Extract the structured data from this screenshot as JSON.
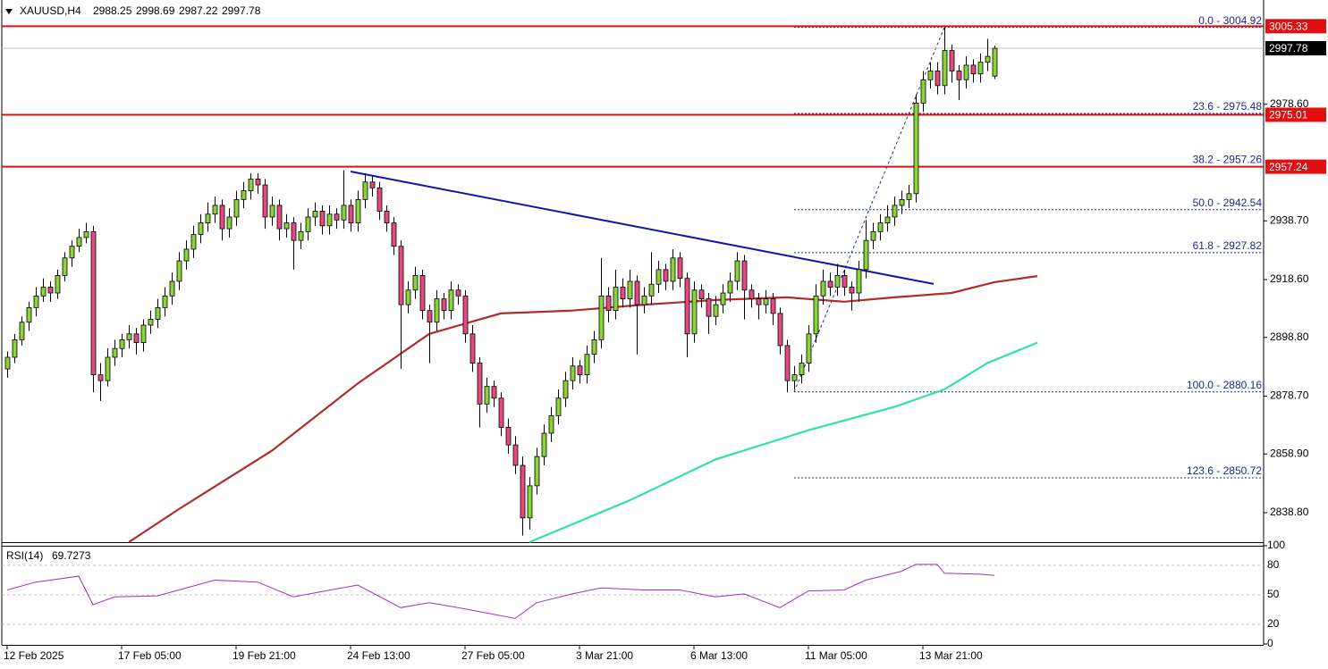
{
  "chart_data": {
    "type": "candlestick",
    "symbol": "XAUUSD,H4",
    "up_color": "#8ad337",
    "down_color": "#e6497f",
    "ylim": [
      2828.7,
      3014.3
    ],
    "yticks": [
      {
        "value": 2838.8,
        "label": "2838.80"
      },
      {
        "value": 2858.9,
        "label": "2858.90"
      },
      {
        "value": 2878.7,
        "label": "2878.70"
      },
      {
        "value": 2898.8,
        "label": "2898.80"
      },
      {
        "value": 2918.6,
        "label": "2918.60"
      },
      {
        "value": 2938.7,
        "label": "2938.70"
      },
      {
        "value": 2978.6,
        "label": "2978.60"
      }
    ],
    "xticks": [
      {
        "value": 0,
        "label": "12 Feb 2025"
      },
      {
        "value": 16,
        "label": "17 Feb 05:00"
      },
      {
        "value": 32,
        "label": "19 Feb 21:00"
      },
      {
        "value": 48,
        "label": "24 Feb 13:00"
      },
      {
        "value": 64,
        "label": "27 Feb 05:00"
      },
      {
        "value": 80,
        "label": "3 Mar 21:00"
      },
      {
        "value": 96,
        "label": "6 Mar 13:00"
      },
      {
        "value": 112,
        "label": "11 Mar 05:00"
      },
      {
        "value": 128,
        "label": "13 Mar 21:00"
      }
    ],
    "candles": [
      [
        2888,
        2894,
        2885,
        2892
      ],
      [
        2892,
        2900,
        2890,
        2898
      ],
      [
        2898,
        2906,
        2896,
        2904
      ],
      [
        2904,
        2911,
        2901,
        2909
      ],
      [
        2909,
        2916,
        2906,
        2913
      ],
      [
        2913,
        2919,
        2911,
        2916
      ],
      [
        2916,
        2918,
        2911,
        2914
      ],
      [
        2914,
        2922,
        2912,
        2920
      ],
      [
        2920,
        2928,
        2918,
        2926
      ],
      [
        2926,
        2932,
        2923,
        2930
      ],
      [
        2930,
        2936,
        2928,
        2933
      ],
      [
        2933,
        2938,
        2931,
        2935
      ],
      [
        2935,
        2937,
        2880,
        2886
      ],
      [
        2886,
        2890,
        2877,
        2884
      ],
      [
        2884,
        2895,
        2882,
        2892
      ],
      [
        2892,
        2898,
        2889,
        2895
      ],
      [
        2895,
        2900,
        2892,
        2898
      ],
      [
        2898,
        2903,
        2895,
        2900
      ],
      [
        2900,
        2902,
        2893,
        2897
      ],
      [
        2897,
        2905,
        2894,
        2903
      ],
      [
        2903,
        2908,
        2900,
        2905
      ],
      [
        2905,
        2912,
        2902,
        2909
      ],
      [
        2909,
        2916,
        2906,
        2913
      ],
      [
        2913,
        2921,
        2910,
        2918
      ],
      [
        2918,
        2928,
        2915,
        2925
      ],
      [
        2925,
        2932,
        2922,
        2929
      ],
      [
        2929,
        2937,
        2926,
        2934
      ],
      [
        2934,
        2941,
        2931,
        2938
      ],
      [
        2938,
        2945,
        2935,
        2941
      ],
      [
        2941,
        2947,
        2938,
        2944
      ],
      [
        2944,
        2946,
        2932,
        2936
      ],
      [
        2936,
        2943,
        2933,
        2940
      ],
      [
        2940,
        2949,
        2937,
        2946
      ],
      [
        2946,
        2952,
        2943,
        2949
      ],
      [
        2949,
        2955,
        2946,
        2953
      ],
      [
        2953,
        2955,
        2948,
        2951
      ],
      [
        2951,
        2953,
        2936,
        2940
      ],
      [
        2940,
        2947,
        2937,
        2944
      ],
      [
        2944,
        2946,
        2932,
        2936
      ],
      [
        2936,
        2941,
        2933,
        2938
      ],
      [
        2938,
        2940,
        2922,
        2932
      ],
      [
        2932,
        2938,
        2929,
        2935
      ],
      [
        2935,
        2943,
        2932,
        2940
      ],
      [
        2940,
        2945,
        2937,
        2942
      ],
      [
        2942,
        2944,
        2934,
        2937
      ],
      [
        2937,
        2944,
        2934,
        2941
      ],
      [
        2941,
        2943,
        2936,
        2939
      ],
      [
        2939,
        2956,
        2936,
        2944
      ],
      [
        2944,
        2946,
        2935,
        2938
      ],
      [
        2938,
        2949,
        2935,
        2946
      ],
      [
        2946,
        2955,
        2943,
        2952
      ],
      [
        2952,
        2954,
        2947,
        2950
      ],
      [
        2950,
        2952,
        2939,
        2942
      ],
      [
        2942,
        2944,
        2935,
        2938
      ],
      [
        2938,
        2940,
        2927,
        2930
      ],
      [
        2930,
        2932,
        2888,
        2910
      ],
      [
        2910,
        2918,
        2907,
        2915
      ],
      [
        2915,
        2923,
        2912,
        2920
      ],
      [
        2920,
        2922,
        2905,
        2908
      ],
      [
        2908,
        2910,
        2890,
        2904
      ],
      [
        2904,
        2915,
        2901,
        2912
      ],
      [
        2912,
        2914,
        2905,
        2908
      ],
      [
        2908,
        2918,
        2905,
        2915
      ],
      [
        2915,
        2917,
        2910,
        2913
      ],
      [
        2913,
        2915,
        2897,
        2900
      ],
      [
        2900,
        2903,
        2887,
        2890
      ],
      [
        2890,
        2892,
        2868,
        2876
      ],
      [
        2876,
        2885,
        2873,
        2882
      ],
      [
        2882,
        2884,
        2875,
        2878
      ],
      [
        2878,
        2880,
        2865,
        2868
      ],
      [
        2868,
        2871,
        2859,
        2862
      ],
      [
        2862,
        2865,
        2852,
        2855
      ],
      [
        2855,
        2858,
        2831,
        2837
      ],
      [
        2837,
        2851,
        2833,
        2848
      ],
      [
        2848,
        2861,
        2845,
        2858
      ],
      [
        2858,
        2869,
        2855,
        2866
      ],
      [
        2866,
        2875,
        2863,
        2872
      ],
      [
        2872,
        2881,
        2869,
        2878
      ],
      [
        2878,
        2887,
        2875,
        2884
      ],
      [
        2884,
        2892,
        2881,
        2889
      ],
      [
        2889,
        2891,
        2883,
        2886
      ],
      [
        2886,
        2896,
        2883,
        2893
      ],
      [
        2893,
        2901,
        2890,
        2898
      ],
      [
        2898,
        2926,
        2895,
        2913
      ],
      [
        2913,
        2916,
        2904,
        2908
      ],
      [
        2908,
        2922,
        2905,
        2916
      ],
      [
        2916,
        2919,
        2909,
        2912
      ],
      [
        2912,
        2922,
        2909,
        2918
      ],
      [
        2918,
        2920,
        2893,
        2910
      ],
      [
        2910,
        2916,
        2907,
        2913
      ],
      [
        2913,
        2928,
        2910,
        2917
      ],
      [
        2917,
        2925,
        2914,
        2922
      ],
      [
        2922,
        2924,
        2915,
        2918
      ],
      [
        2918,
        2929,
        2915,
        2926
      ],
      [
        2926,
        2928,
        2916,
        2919
      ],
      [
        2919,
        2921,
        2892,
        2900
      ],
      [
        2900,
        2918,
        2897,
        2915
      ],
      [
        2915,
        2917,
        2909,
        2912
      ],
      [
        2912,
        2914,
        2900,
        2906
      ],
      [
        2906,
        2913,
        2903,
        2910
      ],
      [
        2910,
        2917,
        2907,
        2914
      ],
      [
        2914,
        2921,
        2911,
        2918
      ],
      [
        2918,
        2928,
        2915,
        2925
      ],
      [
        2925,
        2927,
        2905,
        2915
      ],
      [
        2915,
        2917,
        2909,
        2912
      ],
      [
        2912,
        2914,
        2905,
        2910
      ],
      [
        2910,
        2915,
        2907,
        2912
      ],
      [
        2912,
        2914,
        2903,
        2907
      ],
      [
        2907,
        2909,
        2893,
        2896
      ],
      [
        2896,
        2898,
        2880,
        2884
      ],
      [
        2884,
        2889,
        2881,
        2886
      ],
      [
        2886,
        2893,
        2883,
        2890
      ],
      [
        2890,
        2903,
        2887,
        2900
      ],
      [
        2900,
        2917,
        2897,
        2913
      ],
      [
        2913,
        2922,
        2910,
        2918
      ],
      [
        2918,
        2921,
        2913,
        2916
      ],
      [
        2916,
        2924,
        2913,
        2920
      ],
      [
        2920,
        2922,
        2913,
        2916
      ],
      [
        2916,
        2918,
        2908,
        2914
      ],
      [
        2914,
        2925,
        2911,
        2922
      ],
      [
        2922,
        2939,
        2919,
        2932
      ],
      [
        2932,
        2938,
        2929,
        2935
      ],
      [
        2935,
        2941,
        2932,
        2938
      ],
      [
        2938,
        2944,
        2935,
        2940
      ],
      [
        2940,
        2947,
        2937,
        2944
      ],
      [
        2944,
        2949,
        2941,
        2946
      ],
      [
        2946,
        2951,
        2943,
        2948
      ],
      [
        2948,
        2982,
        2945,
        2979
      ],
      [
        2979,
        2990,
        2976,
        2987
      ],
      [
        2987,
        2993,
        2984,
        2990
      ],
      [
        2990,
        2993,
        2982,
        2985
      ],
      [
        2985,
        3004.92,
        2982,
        2997
      ],
      [
        2997,
        2999,
        2986,
        2990
      ],
      [
        2990,
        2992,
        2980,
        2987
      ],
      [
        2987,
        2995,
        2984,
        2992
      ],
      [
        2992,
        2994,
        2986,
        2989
      ],
      [
        2989,
        2996,
        2986,
        2993
      ],
      [
        2993,
        3001,
        2990,
        2995
      ],
      [
        2988.25,
        2998.69,
        2987.22,
        2997.78
      ]
    ],
    "overlays": [
      {
        "color": "#b22a2a",
        "x": [
          17,
          24,
          37,
          49,
          59,
          69,
          79,
          89,
          99,
          109,
          117,
          124,
          132,
          138,
          144
        ],
        "values": [
          2828.7,
          2840,
          2860,
          2883,
          2900,
          2907,
          2908,
          2910,
          2911.6,
          2912.5,
          2911,
          2912.5,
          2914,
          2917.7,
          2919.8
        ]
      },
      {
        "color": "#2fe3a0",
        "x": [
          73,
          87,
          99,
          112,
          124,
          131,
          137,
          144
        ],
        "values": [
          2828.7,
          2843,
          2857,
          2867,
          2875,
          2881,
          2890,
          2897
        ]
      }
    ],
    "trendline": {
      "color": "#1414a8",
      "x": [
        48,
        129.5
      ],
      "values": [
        2955.6,
        2917.1
      ]
    },
    "levels": [
      {
        "value": 3005.33,
        "color": "#e01010"
      },
      {
        "value": 2975.01,
        "color": "#e01010"
      },
      {
        "value": 2957.24,
        "color": "#e01010"
      }
    ],
    "fib": {
      "color": "#1c2a8a",
      "x": [
        110,
        131
      ],
      "levels": [
        {
          "value": 3004.92,
          "label": "0.0 - 3004.92"
        },
        {
          "value": 2975.48,
          "label": "23.6 - 2975.48"
        },
        {
          "value": 2957.26,
          "label": "38.2 - 2957.26"
        },
        {
          "value": 2942.54,
          "label": "50.0 - 2942.54"
        },
        {
          "value": 2927.82,
          "label": "61.8 - 2927.82"
        },
        {
          "value": 2880.16,
          "label": "100.0 - 2880.16"
        },
        {
          "value": 2850.72,
          "label": "123.6 - 2850.72"
        }
      ]
    },
    "rsi": {
      "title": "RSI(14)",
      "current": 69.7273,
      "color": "#9b30c8",
      "ylim": [
        0,
        100
      ],
      "yticks": [
        0,
        20,
        50,
        80,
        100
      ],
      "x": [
        0,
        4,
        10,
        12,
        15,
        21,
        29,
        35,
        40,
        49,
        55,
        59,
        63,
        66,
        71,
        74,
        79,
        83,
        89,
        94,
        99,
        103,
        108,
        112,
        117,
        120,
        125,
        127,
        130,
        131,
        136,
        138
      ],
      "values": [
        55,
        63,
        69,
        40,
        48,
        49,
        65,
        63,
        48,
        60,
        37,
        42,
        37,
        33,
        26,
        42,
        51,
        57,
        55,
        55,
        48,
        51,
        37,
        54,
        55,
        65,
        74,
        81,
        81,
        72,
        71,
        69.7273
      ]
    }
  }
}
